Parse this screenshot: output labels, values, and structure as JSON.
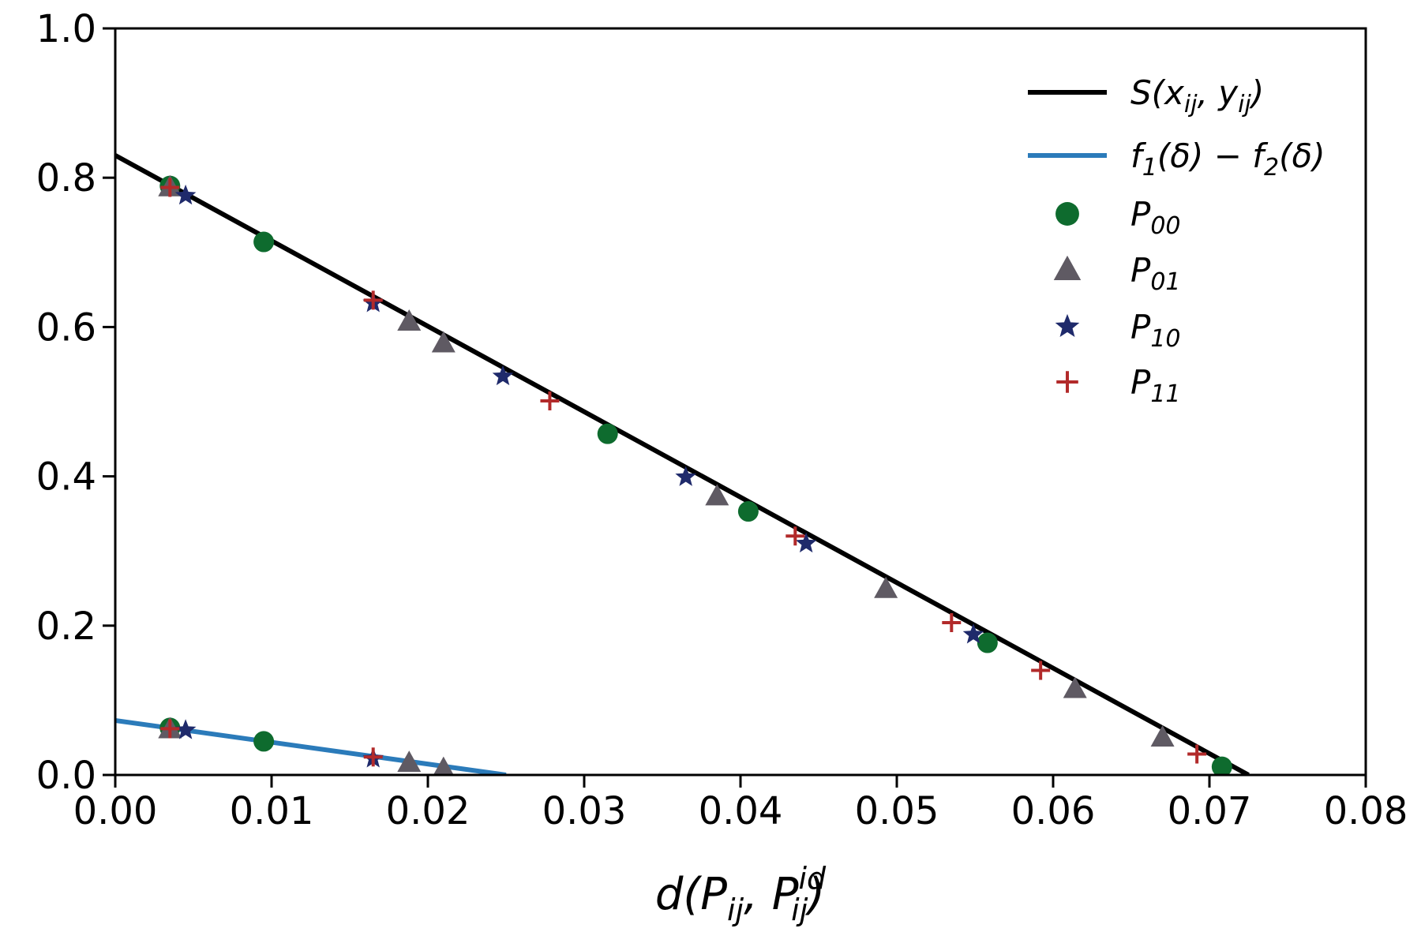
{
  "chart_data": {
    "type": "scatter",
    "title": "",
    "xlabel": {
      "main": "d(P",
      "sub1": "ij",
      "sep": ", P",
      "sup": "id",
      "sub2": "ij",
      "close": ")"
    },
    "ylabel": "",
    "xlim": [
      0.0,
      0.08
    ],
    "ylim": [
      0.0,
      1.0
    ],
    "xticks": [
      0.0,
      0.01,
      0.02,
      0.03,
      0.04,
      0.05,
      0.06,
      0.07,
      0.08
    ],
    "xtick_labels": [
      "0.00",
      "0.01",
      "0.02",
      "0.03",
      "0.04",
      "0.05",
      "0.06",
      "0.07",
      "0.08"
    ],
    "yticks": [
      0.0,
      0.2,
      0.4,
      0.6,
      0.8,
      1.0
    ],
    "ytick_labels": [
      "0.0",
      "0.2",
      "0.4",
      "0.6",
      "0.8",
      "1.0"
    ],
    "grid": false,
    "legend_position": "top-right",
    "lines": [
      {
        "id": "S",
        "label": {
          "main": "S(x",
          "sub1": "ij",
          "mid": ", y",
          "sub2": "ij",
          "end": ")"
        },
        "color": "#000000",
        "x": [
          0.0,
          0.0725
        ],
        "y": [
          0.83,
          0.0
        ]
      },
      {
        "id": "f",
        "label": {
          "a": "f",
          "sub1": "1",
          "b": "(δ) − f",
          "sub2": "2",
          "c": "(δ)"
        },
        "color": "#2b7bba",
        "x": [
          0.0,
          0.025
        ],
        "y": [
          0.073,
          0.0
        ]
      }
    ],
    "series": [
      {
        "name": "P00",
        "label_main": "P",
        "label_sub": "00",
        "marker": "circle",
        "color": "#0e6b2e",
        "points": [
          [
            0.0035,
            0.789
          ],
          [
            0.0095,
            0.714
          ],
          [
            0.0315,
            0.457
          ],
          [
            0.0405,
            0.353
          ],
          [
            0.0558,
            0.177
          ],
          [
            0.0708,
            0.011
          ],
          [
            0.0035,
            0.063
          ],
          [
            0.0095,
            0.045
          ]
        ]
      },
      {
        "name": "P01",
        "label_main": "P",
        "label_sub": "01",
        "marker": "triangle",
        "color": "#5f5a63",
        "points": [
          [
            0.0035,
            0.787
          ],
          [
            0.0188,
            0.607
          ],
          [
            0.021,
            0.578
          ],
          [
            0.0385,
            0.373
          ],
          [
            0.0493,
            0.249
          ],
          [
            0.0614,
            0.115
          ],
          [
            0.067,
            0.05
          ],
          [
            0.0035,
            0.061
          ],
          [
            0.0188,
            0.016
          ],
          [
            0.021,
            0.008
          ]
        ]
      },
      {
        "name": "P10",
        "label_main": "P",
        "label_sub": "10",
        "marker": "star",
        "color": "#1f2a6b",
        "points": [
          [
            0.0045,
            0.776
          ],
          [
            0.0165,
            0.632
          ],
          [
            0.0248,
            0.534
          ],
          [
            0.0365,
            0.399
          ],
          [
            0.0442,
            0.31
          ],
          [
            0.0549,
            0.188
          ],
          [
            0.0045,
            0.06
          ],
          [
            0.0165,
            0.022
          ]
        ]
      },
      {
        "name": "P11",
        "label_main": "P",
        "label_sub": "11",
        "marker": "plus",
        "color": "#b22a2a",
        "points": [
          [
            0.0035,
            0.787
          ],
          [
            0.0165,
            0.636
          ],
          [
            0.0278,
            0.501
          ],
          [
            0.0435,
            0.32
          ],
          [
            0.0535,
            0.204
          ],
          [
            0.0592,
            0.14
          ],
          [
            0.0692,
            0.028
          ],
          [
            0.0035,
            0.062
          ],
          [
            0.0165,
            0.024
          ]
        ]
      }
    ]
  }
}
